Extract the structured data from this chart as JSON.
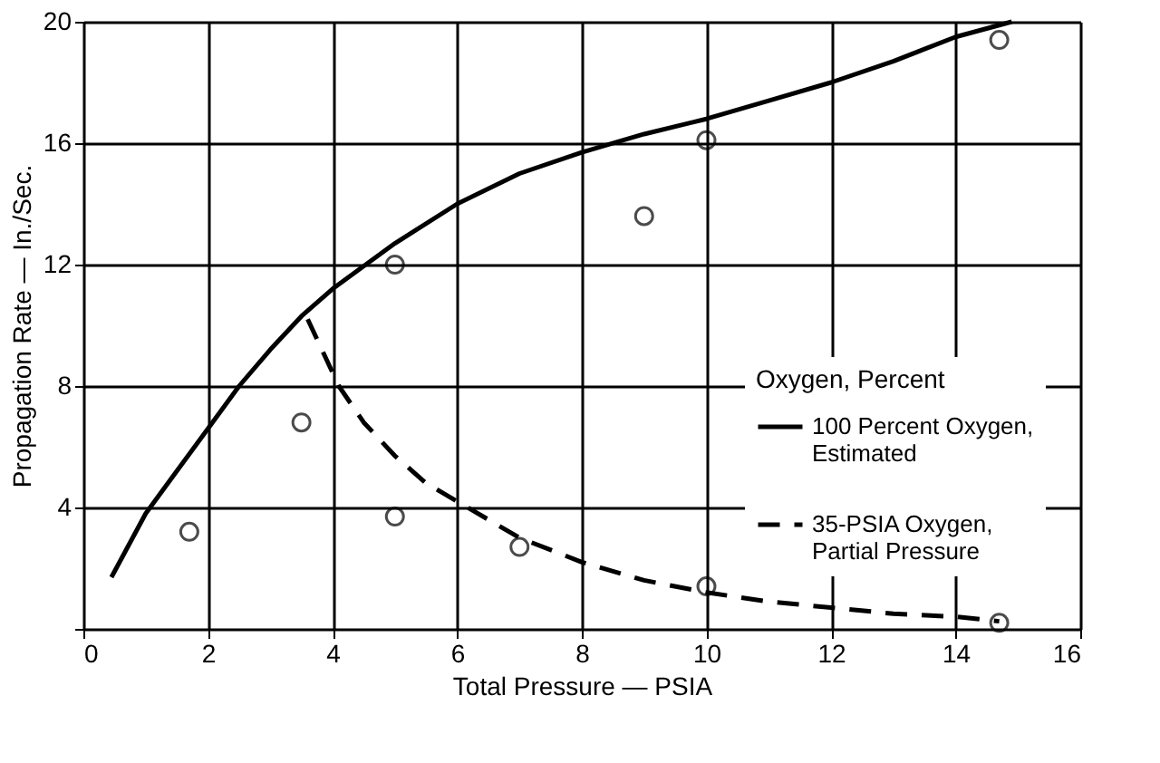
{
  "chart_data": {
    "type": "line",
    "xlabel": "Total Pressure — PSIA",
    "ylabel": "Propagation Rate — In./Sec.",
    "legend_title": "Oxygen, Percent",
    "xlim": [
      0,
      16
    ],
    "ylim": [
      0,
      20
    ],
    "xticks": [
      0,
      2,
      4,
      6,
      8,
      10,
      12,
      14,
      16
    ],
    "yticks": [
      {
        "value": 0,
        "label": null
      },
      4,
      8,
      12,
      16,
      20
    ],
    "grid": true,
    "legend": "right",
    "series": [
      {
        "name": "100 Percent Oxygen, Estimated",
        "line_style": "solid",
        "color": "#000000",
        "x": [
          0.45,
          1,
          1.5,
          2,
          2.5,
          3,
          3.5,
          4,
          5,
          6,
          7,
          8,
          9,
          10,
          11,
          12,
          13,
          14,
          14.9
        ],
        "values": [
          1.7,
          3.8,
          5.2,
          6.6,
          8,
          9.2,
          10.3,
          11.2,
          12.7,
          14,
          15,
          15.7,
          16.3,
          16.8,
          17.4,
          18,
          18.7,
          19.5,
          20
        ]
      },
      {
        "name": "35-PSIA Oxygen, Partial Pressure",
        "line_style": "dashed",
        "color": "#000000",
        "x": [
          3.6,
          4.1,
          4.5,
          5,
          5.5,
          6,
          7,
          8,
          9,
          10,
          11,
          12,
          13,
          14,
          14.7
        ],
        "values": [
          10.2,
          8,
          6.8,
          5.7,
          4.8,
          4.2,
          3,
          2.2,
          1.6,
          1.2,
          0.9,
          0.7,
          0.5,
          0.4,
          0.25
        ]
      },
      {
        "type": "scatter",
        "marker": "circle",
        "color": "#000000",
        "x": [
          1.7,
          3.5,
          5,
          5,
          7,
          9,
          10,
          10,
          14.7,
          14.7
        ],
        "values": [
          3.2,
          6.8,
          12,
          3.7,
          2.7,
          13.6,
          16.1,
          1.4,
          19.4,
          0.2
        ]
      }
    ]
  }
}
